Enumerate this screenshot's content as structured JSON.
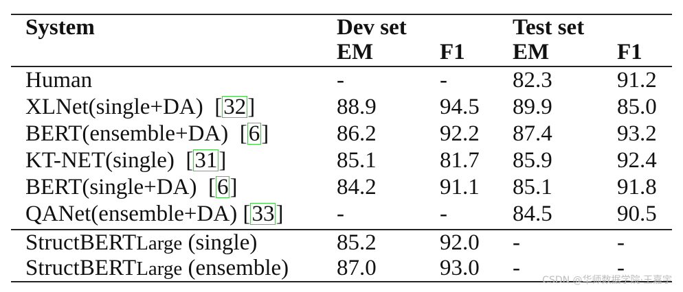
{
  "header": {
    "system": "System",
    "dev_set": "Dev set",
    "test_set": "Test set",
    "em": "EM",
    "f1": "F1"
  },
  "rows_group1": [
    {
      "system": "Human",
      "cite": "",
      "dev_em": "-",
      "dev_f1": "-",
      "test_em": "82.3",
      "test_f1": "91.2"
    },
    {
      "system": "XLNet(single+DA)",
      "cite": "32",
      "dev_em": "88.9",
      "dev_f1": "94.5",
      "test_em": "89.9",
      "test_f1": "85.0"
    },
    {
      "system": "BERT(ensemble+DA)",
      "cite": "6",
      "dev_em": "86.2",
      "dev_f1": "92.2",
      "test_em": "87.4",
      "test_f1": "93.2"
    },
    {
      "system": "KT-NET(single)",
      "cite": "31",
      "dev_em": "85.1",
      "dev_f1": "81.7",
      "test_em": "85.9",
      "test_f1": "92.4"
    },
    {
      "system": "BERT(single+DA)",
      "cite": "6",
      "dev_em": "84.2",
      "dev_f1": "91.1",
      "test_em": "85.1",
      "test_f1": "91.8"
    },
    {
      "system": "QANet(ensemble+DA)",
      "cite": "33",
      "dev_em": "-",
      "dev_f1": "-",
      "test_em": "84.5",
      "test_f1": "90.5"
    }
  ],
  "rows_group2": [
    {
      "system_main": "StructBERT",
      "system_small": "Large",
      "system_rest": " (single)",
      "dev_em": "85.2",
      "dev_f1": "92.0",
      "test_em": "-",
      "test_f1": "-"
    },
    {
      "system_main": "StructBERT",
      "system_small": "Large",
      "system_rest": " (ensemble)",
      "dev_em": "87.0",
      "dev_f1": "93.0",
      "test_em": "-",
      "test_f1": "-"
    }
  ],
  "watermark": "CSDN @华师数据学院·王嘉宇"
}
